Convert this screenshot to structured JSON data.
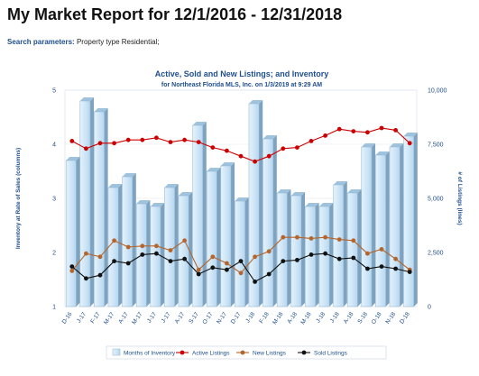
{
  "report": {
    "title": "My Market Report for 12/1/2016 - 12/31/2018",
    "params_label": "Search parameters:",
    "params_value": "Property type Residential;"
  },
  "chart_data": {
    "type": "bar",
    "title": "Active, Sold and New Listings; and Inventory",
    "subtitle": "for Northeast Florida MLS, Inc. on 1/3/2019 at 9:29 AM",
    "ylabel_left": "Inventory at Rate of Sales (columns)",
    "ylabel_right": "# of Listings (lines)",
    "ylim_left": [
      1,
      5
    ],
    "ylim_right": [
      0,
      10000
    ],
    "yticks_left": [
      "1",
      "2",
      "3",
      "4",
      "5"
    ],
    "yticks_right": [
      "0",
      "2,500",
      "5,000",
      "7,500",
      "10,000"
    ],
    "categories": [
      "D-16",
      "J-17",
      "F-17",
      "M-17",
      "A-17",
      "M-17",
      "J-17",
      "J-17",
      "A-17",
      "S-17",
      "O-17",
      "N-17",
      "D-17",
      "J-18",
      "F-18",
      "M-18",
      "A-18",
      "M-18",
      "J-18",
      "J-18",
      "A-18",
      "S-18",
      "O-18",
      "N-18",
      "D-18"
    ],
    "series": [
      {
        "name": "Months of Inventory",
        "axis": "left",
        "color": "#cfe6f7",
        "values": [
          3.7,
          4.8,
          4.6,
          3.2,
          3.4,
          2.9,
          2.85,
          3.2,
          3.05,
          4.35,
          3.5,
          3.6,
          2.95,
          4.75,
          4.1,
          3.1,
          3.05,
          2.85,
          2.85,
          3.25,
          3.1,
          3.95,
          3.8,
          3.95,
          4.15
        ]
      },
      {
        "name": "Active Listings",
        "axis": "right",
        "color": "#cc0000",
        "values": [
          7650,
          7300,
          7550,
          7550,
          7700,
          7700,
          7800,
          7600,
          7700,
          7600,
          7350,
          7200,
          6950,
          6700,
          6950,
          7300,
          7350,
          7650,
          7900,
          8200,
          8100,
          8050,
          8250,
          8150,
          7550
        ]
      },
      {
        "name": "New Listings",
        "axis": "right",
        "color": "#b5652b",
        "values": [
          1650,
          2450,
          2300,
          3050,
          2750,
          2800,
          2800,
          2600,
          3050,
          1700,
          2300,
          2000,
          1550,
          2300,
          2550,
          3200,
          3200,
          3150,
          3200,
          3100,
          3050,
          2450,
          2650,
          2200,
          1700
        ]
      },
      {
        "name": "Sold Listings",
        "axis": "right",
        "color": "#111111",
        "values": [
          1850,
          1300,
          1450,
          2100,
          2000,
          2400,
          2450,
          2100,
          2200,
          1500,
          1800,
          1700,
          2100,
          1150,
          1500,
          2100,
          2150,
          2400,
          2450,
          2200,
          2250,
          1750,
          1850,
          1750,
          1600
        ]
      }
    ],
    "legend_position": "bottom",
    "grid": true
  }
}
